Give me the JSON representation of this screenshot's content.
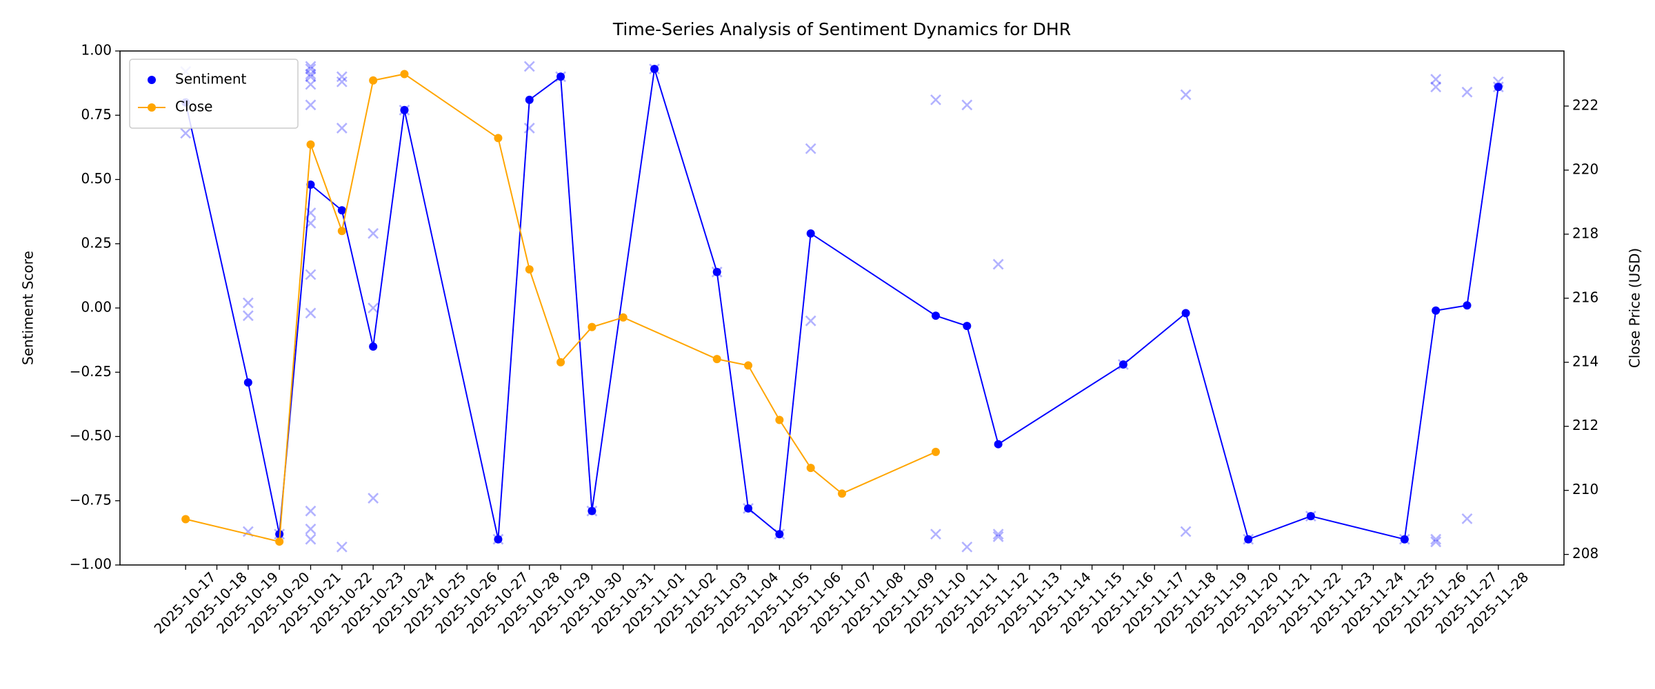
{
  "chart_data": {
    "type": "line",
    "title": "Time-Series Analysis of Sentiment Dynamics for DHR",
    "ylabel": "Sentiment Score",
    "y2label": "Close Price (USD)",
    "ylim": [
      -1,
      1
    ],
    "yticks": [
      {
        "value": -1,
        "label": "−1.00"
      },
      {
        "value": -0.75,
        "label": "−0.75"
      },
      {
        "value": -0.5,
        "label": "−0.50"
      },
      {
        "value": -0.25,
        "label": "−0.25"
      },
      {
        "value": 0,
        "label": "0.00"
      },
      {
        "value": 0.25,
        "label": "0.25"
      },
      {
        "value": 0.5,
        "label": "0.50"
      },
      {
        "value": 0.75,
        "label": "0.75"
      },
      {
        "value": 1,
        "label": "1.00"
      }
    ],
    "y2lim": [
      207.67,
      223.72
    ],
    "y2ticks": [
      208,
      210,
      212,
      214,
      216,
      218,
      220,
      222
    ],
    "xticks": [
      "2025-10-17",
      "2025-10-18",
      "2025-10-19",
      "2025-10-20",
      "2025-10-21",
      "2025-10-22",
      "2025-10-23",
      "2025-10-24",
      "2025-10-25",
      "2025-10-26",
      "2025-10-27",
      "2025-10-28",
      "2025-10-29",
      "2025-10-30",
      "2025-10-31",
      "2025-11-01",
      "2025-11-02",
      "2025-11-03",
      "2025-11-04",
      "2025-11-05",
      "2025-11-06",
      "2025-11-07",
      "2025-11-08",
      "2025-11-09",
      "2025-11-10",
      "2025-11-11",
      "2025-11-12",
      "2025-11-13",
      "2025-11-14",
      "2025-11-15",
      "2025-11-16",
      "2025-11-17",
      "2025-11-18",
      "2025-11-19",
      "2025-11-20",
      "2025-11-21",
      "2025-11-22",
      "2025-11-23",
      "2025-11-24",
      "2025-11-25",
      "2025-11-26",
      "2025-11-27",
      "2025-11-28"
    ],
    "legend": "upper left",
    "series": [
      {
        "type": "scatter",
        "color": "rgba(0,0,255,0.3)",
        "x": [
          "2025-10-17",
          "2025-10-17",
          "2025-10-19",
          "2025-10-19",
          "2025-10-19",
          "2025-10-20",
          "2025-10-21",
          "2025-10-21",
          "2025-10-21",
          "2025-10-21",
          "2025-10-21",
          "2025-10-21",
          "2025-10-21",
          "2025-10-21",
          "2025-10-21",
          "2025-10-21",
          "2025-10-21",
          "2025-10-21",
          "2025-10-21",
          "2025-10-22",
          "2025-10-22",
          "2025-10-22",
          "2025-10-22",
          "2025-10-23",
          "2025-10-23",
          "2025-10-23",
          "2025-10-24",
          "2025-10-27",
          "2025-10-28",
          "2025-10-28",
          "2025-10-29",
          "2025-10-30",
          "2025-11-01",
          "2025-11-03",
          "2025-11-04",
          "2025-11-05",
          "2025-11-06",
          "2025-11-06",
          "2025-11-10",
          "2025-11-10",
          "2025-11-11",
          "2025-11-11",
          "2025-11-12",
          "2025-11-12",
          "2025-11-12",
          "2025-11-16",
          "2025-11-18",
          "2025-11-18",
          "2025-11-20",
          "2025-11-22",
          "2025-11-25",
          "2025-11-26",
          "2025-11-26",
          "2025-11-26",
          "2025-11-26",
          "2025-11-27",
          "2025-11-27",
          "2025-11-28",
          "2025-11-28"
        ],
        "values": [
          0.92,
          0.68,
          0.02,
          -0.03,
          -0.87,
          -0.88,
          0.94,
          0.93,
          0.91,
          0.9,
          0.87,
          0.79,
          0.37,
          0.33,
          0.13,
          -0.02,
          -0.79,
          -0.86,
          -0.9,
          0.9,
          0.88,
          0.7,
          -0.93,
          0.29,
          0.0,
          -0.74,
          0.77,
          -0.9,
          0.94,
          0.7,
          0.9,
          -0.79,
          0.93,
          0.14,
          -0.78,
          -0.88,
          0.62,
          -0.05,
          0.81,
          -0.88,
          0.79,
          -0.93,
          0.17,
          -0.88,
          -0.89,
          -0.22,
          0.83,
          -0.87,
          -0.9,
          -0.81,
          -0.9,
          0.89,
          0.86,
          -0.9,
          -0.91,
          0.84,
          -0.82,
          0.88,
          0.86
        ]
      },
      {
        "type": "line",
        "name": "Sentiment",
        "color": "blue",
        "x": [
          "2025-10-17",
          "2025-10-19",
          "2025-10-20",
          "2025-10-21",
          "2025-10-22",
          "2025-10-23",
          "2025-10-24",
          "2025-10-27",
          "2025-10-28",
          "2025-10-29",
          "2025-10-30",
          "2025-11-01",
          "2025-11-03",
          "2025-11-04",
          "2025-11-05",
          "2025-11-06",
          "2025-11-10",
          "2025-11-11",
          "2025-11-12",
          "2025-11-16",
          "2025-11-18",
          "2025-11-20",
          "2025-11-22",
          "2025-11-25",
          "2025-11-26",
          "2025-11-27",
          "2025-11-28"
        ],
        "values": [
          0.8,
          -0.29,
          -0.88,
          0.48,
          0.38,
          -0.15,
          0.77,
          -0.9,
          0.81,
          0.9,
          -0.79,
          0.93,
          0.14,
          -0.78,
          -0.88,
          0.29,
          -0.03,
          -0.07,
          -0.53,
          -0.22,
          -0.02,
          -0.9,
          -0.81,
          -0.9,
          -0.01,
          0.01,
          0.86
        ]
      },
      {
        "type": "line",
        "name": "Close",
        "color": "orange",
        "axis": "y2",
        "x": [
          "2025-10-17",
          "2025-10-20",
          "2025-10-21",
          "2025-10-22",
          "2025-10-23",
          "2025-10-24",
          "2025-10-27",
          "2025-10-28",
          "2025-10-29",
          "2025-10-30",
          "2025-10-31",
          "2025-11-03",
          "2025-11-04",
          "2025-11-05",
          "2025-11-06",
          "2025-11-07",
          "2025-11-10"
        ],
        "values": [
          209.1,
          208.4,
          220.8,
          218.1,
          222.8,
          223.0,
          221.0,
          216.9,
          214.0,
          215.1,
          215.4,
          214.1,
          213.9,
          212.2,
          210.7,
          209.9,
          211.2
        ]
      }
    ]
  }
}
